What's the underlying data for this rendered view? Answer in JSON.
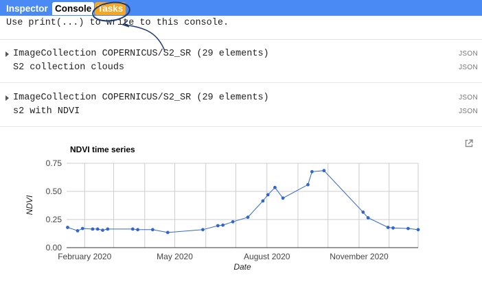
{
  "tabs": [
    {
      "label": "Inspector"
    },
    {
      "label": "Console"
    },
    {
      "label": "Tasks"
    }
  ],
  "console": {
    "hint": "Use print(...) to write to this console.",
    "entries": [
      {
        "title": "ImageCollection COPERNICUS/S2_SR (29 elements)",
        "subtitle": "S2 collection clouds",
        "json_label": "JSON",
        "json_label_2": "JSON"
      },
      {
        "title": "ImageCollection COPERNICUS/S2_SR (29 elements)",
        "subtitle": "s2 with NDVI",
        "json_label": "JSON",
        "json_label_2": "JSON"
      }
    ]
  },
  "colors": {
    "tabbar": "#4a8af4",
    "tasks_tab": "#f5a623",
    "series_line": "#3366cc",
    "annotation": "#1f3a6e"
  },
  "icons": {
    "expand": "triangle-right-icon",
    "popout": "open-in-new-icon"
  },
  "chart_data": {
    "type": "line",
    "title": "NDVI time series",
    "xlabel": "Date",
    "ylabel": "NDVI",
    "ylim": [
      0,
      0.75
    ],
    "yticks": [
      {
        "value": 0.0,
        "label": "0.00"
      },
      {
        "value": 0.25,
        "label": "0.25"
      },
      {
        "value": 0.5,
        "label": "0.50"
      },
      {
        "value": 0.75,
        "label": "0.75"
      }
    ],
    "xlim": [
      "2020-01-14",
      "2020-12-30"
    ],
    "xticks": [
      {
        "date": "2020-02-01",
        "label": "February 2020"
      },
      {
        "date": "2020-05-01",
        "label": "May 2020"
      },
      {
        "date": "2020-08-01",
        "label": "August 2020"
      },
      {
        "date": "2020-11-01",
        "label": "November 2020"
      }
    ],
    "xgrid_dates": [
      "2020-01-01",
      "2020-02-01",
      "2020-03-01",
      "2020-04-01",
      "2020-05-01",
      "2020-06-01",
      "2020-07-01",
      "2020-08-01",
      "2020-09-01",
      "2020-10-01",
      "2020-11-01",
      "2020-12-01"
    ],
    "grid": true,
    "legend": "none",
    "series": [
      {
        "points": [
          {
            "x": "2020-01-15",
            "y": 0.18
          },
          {
            "x": "2020-01-25",
            "y": 0.15
          },
          {
            "x": "2020-01-30",
            "y": 0.17
          },
          {
            "x": "2020-02-09",
            "y": 0.165
          },
          {
            "x": "2020-02-14",
            "y": 0.165
          },
          {
            "x": "2020-02-19",
            "y": 0.155
          },
          {
            "x": "2020-02-24",
            "y": 0.165
          },
          {
            "x": "2020-03-20",
            "y": 0.165
          },
          {
            "x": "2020-03-25",
            "y": 0.16
          },
          {
            "x": "2020-04-09",
            "y": 0.16
          },
          {
            "x": "2020-04-24",
            "y": 0.135
          },
          {
            "x": "2020-05-29",
            "y": 0.16
          },
          {
            "x": "2020-06-13",
            "y": 0.195
          },
          {
            "x": "2020-06-18",
            "y": 0.2
          },
          {
            "x": "2020-06-28",
            "y": 0.23
          },
          {
            "x": "2020-07-13",
            "y": 0.27
          },
          {
            "x": "2020-07-28",
            "y": 0.415
          },
          {
            "x": "2020-08-02",
            "y": 0.47
          },
          {
            "x": "2020-08-09",
            "y": 0.535
          },
          {
            "x": "2020-08-17",
            "y": 0.44
          },
          {
            "x": "2020-09-11",
            "y": 0.56
          },
          {
            "x": "2020-09-15",
            "y": 0.675
          },
          {
            "x": "2020-09-27",
            "y": 0.685
          },
          {
            "x": "2020-11-05",
            "y": 0.315
          },
          {
            "x": "2020-11-10",
            "y": 0.265
          },
          {
            "x": "2020-11-30",
            "y": 0.18
          },
          {
            "x": "2020-12-05",
            "y": 0.175
          },
          {
            "x": "2020-12-20",
            "y": 0.17
          },
          {
            "x": "2020-12-30",
            "y": 0.16
          }
        ]
      }
    ]
  }
}
